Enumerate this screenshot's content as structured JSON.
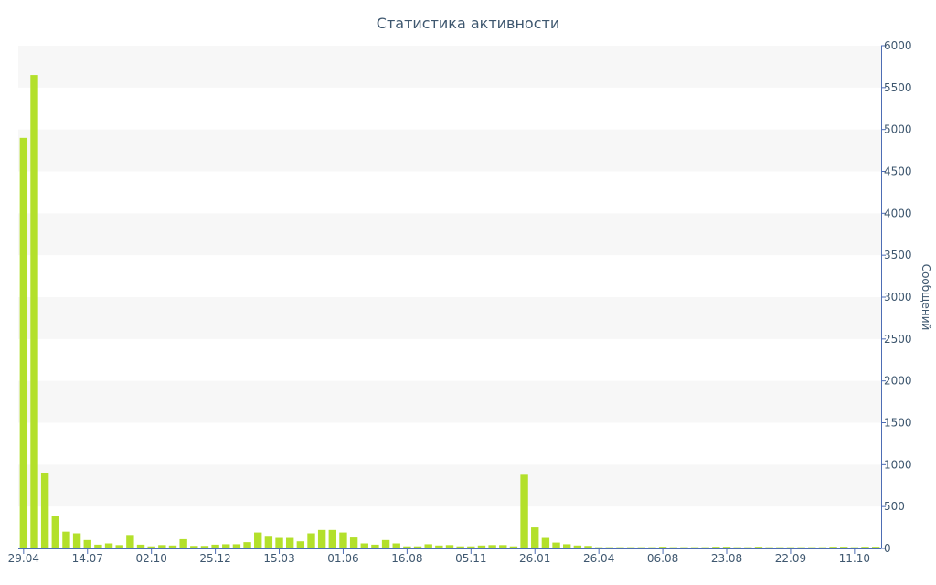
{
  "chart_data": {
    "type": "bar",
    "title": "Статистика активности",
    "xlabel": "",
    "ylabel": "Сообщений",
    "ylim": [
      0,
      6000
    ],
    "y_ticks": [
      0,
      500,
      1000,
      1500,
      2000,
      2500,
      3000,
      3500,
      4000,
      4500,
      5000,
      5500,
      6000
    ],
    "y_axis_side": "right",
    "alternating_bands": true,
    "colors": {
      "bar": "#b3e02b",
      "text": "#3e576f",
      "axis": "#4d6db4",
      "band": "#f7f7f7"
    },
    "x_tick_labels": [
      "29.04",
      "14.07",
      "02.10",
      "25.12",
      "15.03",
      "01.06",
      "16.08",
      "05.11",
      "26.01",
      "26.04",
      "06.08",
      "23.08",
      "22.09",
      "11.10"
    ],
    "x_tick_positions": [
      0,
      6,
      12,
      18,
      24,
      30,
      36,
      42,
      48,
      54,
      60,
      66,
      72,
      78
    ],
    "values": [
      4900,
      5650,
      900,
      390,
      200,
      180,
      100,
      45,
      60,
      40,
      160,
      45,
      25,
      40,
      35,
      110,
      30,
      30,
      45,
      50,
      50,
      75,
      190,
      150,
      125,
      125,
      85,
      180,
      220,
      220,
      190,
      130,
      60,
      45,
      100,
      60,
      25,
      25,
      50,
      35,
      40,
      25,
      25,
      35,
      40,
      40,
      25,
      880,
      250,
      125,
      70,
      50,
      35,
      30,
      15,
      15,
      15,
      15,
      15,
      15,
      20,
      15,
      15,
      15,
      15,
      20,
      20,
      15,
      15,
      20,
      15,
      15,
      15,
      15,
      15,
      15,
      20,
      20,
      15,
      20,
      20
    ]
  }
}
